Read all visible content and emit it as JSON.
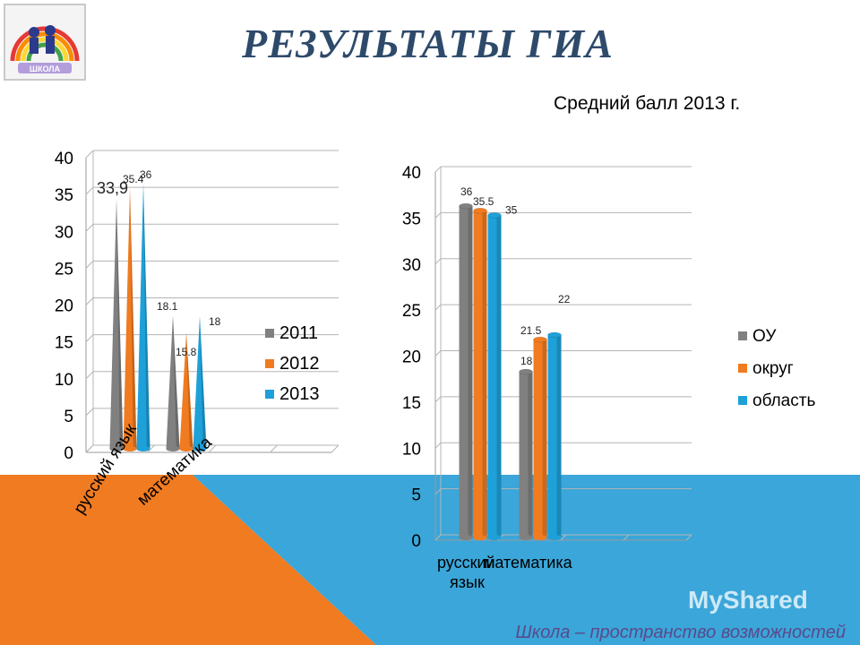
{
  "page": {
    "title": "РЕЗУЛЬТАТЫ ГИА",
    "subtitle": "Средний балл 2013 г.",
    "footer": "Школа – пространство возможностей",
    "watermark": "MyShared",
    "logo_text": "ШКОЛА",
    "colors": {
      "orange_band": "#f07b20",
      "blue_band": "#3aa6d9",
      "title": "#2e4a6b"
    }
  },
  "chart_data": [
    {
      "type": "bar",
      "title": "",
      "xlabel": "",
      "ylabel": "",
      "ylim": [
        0,
        40
      ],
      "yticks": [
        "0",
        "5",
        "10",
        "15",
        "20",
        "25",
        "30",
        "35",
        "40"
      ],
      "categories": [
        "русский язык",
        "математика"
      ],
      "series": [
        {
          "name": "2011",
          "values": [
            33.9,
            18.1
          ],
          "labels": [
            "33,9",
            "18.1"
          ],
          "color": "#808080"
        },
        {
          "name": "2012",
          "values": [
            35.4,
            15.8
          ],
          "labels": [
            "35.4",
            "15.8"
          ],
          "color": "#f07b20"
        },
        {
          "name": "2013",
          "values": [
            36,
            18
          ],
          "labels": [
            "36",
            "18"
          ],
          "color": "#1ea0d8"
        }
      ],
      "legend": "right",
      "grid": true
    },
    {
      "type": "bar",
      "title": "",
      "xlabel": "",
      "ylabel": "",
      "ylim": [
        0,
        40
      ],
      "yticks": [
        "0",
        "5",
        "10",
        "15",
        "20",
        "25",
        "30",
        "35",
        "40"
      ],
      "categories": [
        "русский язык",
        "математика"
      ],
      "series": [
        {
          "name": "ОУ",
          "values": [
            36,
            18
          ],
          "labels": [
            "36",
            "18"
          ],
          "color": "#808080"
        },
        {
          "name": "округ",
          "values": [
            35.5,
            21.5
          ],
          "labels": [
            "35.5",
            "21.5"
          ],
          "color": "#f07b20"
        },
        {
          "name": "область",
          "values": [
            35,
            22
          ],
          "labels": [
            "35",
            "22"
          ],
          "color": "#1ea0d8"
        }
      ],
      "legend": "right",
      "grid": true
    }
  ]
}
